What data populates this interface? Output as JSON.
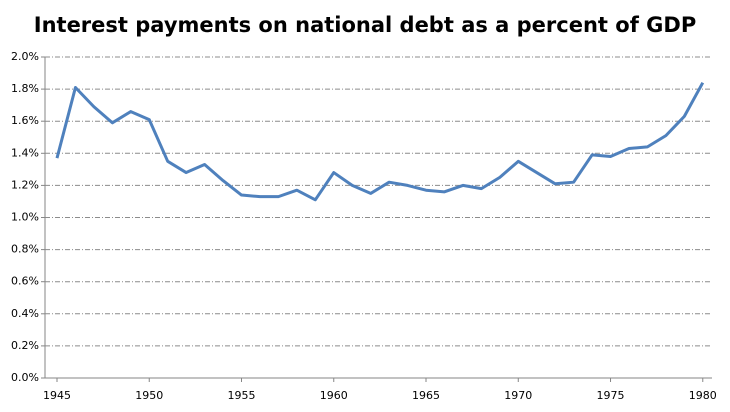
{
  "chart_data": {
    "type": "line",
    "title": "Interest payments on national debt as a percent of GDP",
    "x": [
      1945,
      1946,
      1947,
      1948,
      1949,
      1950,
      1951,
      1952,
      1953,
      1954,
      1955,
      1956,
      1957,
      1958,
      1959,
      1960,
      1961,
      1962,
      1963,
      1964,
      1965,
      1966,
      1967,
      1968,
      1969,
      1970,
      1971,
      1972,
      1973,
      1974,
      1975,
      1976,
      1977,
      1978,
      1979,
      1980
    ],
    "series": [
      {
        "color": "#4f81bd",
        "values": [
          1.37,
          1.81,
          1.69,
          1.59,
          1.66,
          1.61,
          1.35,
          1.28,
          1.33,
          1.23,
          1.14,
          1.13,
          1.13,
          1.17,
          1.11,
          1.28,
          1.2,
          1.15,
          1.22,
          1.2,
          1.17,
          1.16,
          1.2,
          1.18,
          1.25,
          1.35,
          1.28,
          1.21,
          1.22,
          1.39,
          1.38,
          1.43,
          1.44,
          1.51,
          1.63,
          1.84
        ]
      }
    ],
    "xlim": [
      1944.35,
      1980.5
    ],
    "xticks": [
      1945,
      1950,
      1955,
      1960,
      1965,
      1970,
      1975,
      1980
    ],
    "ylim": [
      0,
      2.0
    ],
    "yticks": [
      {
        "value": 0,
        "label": "0.0%"
      },
      {
        "value": 0.2,
        "label": "0.2%"
      },
      {
        "value": 0.4,
        "label": "0.4%"
      },
      {
        "value": 0.6,
        "label": "0.6%"
      },
      {
        "value": 0.8,
        "label": "0.8%"
      },
      {
        "value": 1.0,
        "label": "1.0%"
      },
      {
        "value": 1.2,
        "label": "1.2%"
      },
      {
        "value": 1.4,
        "label": "1.4%"
      },
      {
        "value": 1.6,
        "label": "1.6%"
      },
      {
        "value": 1.8,
        "label": "1.8%"
      },
      {
        "value": 2.0,
        "label": "2.0%"
      }
    ],
    "grid": true
  }
}
